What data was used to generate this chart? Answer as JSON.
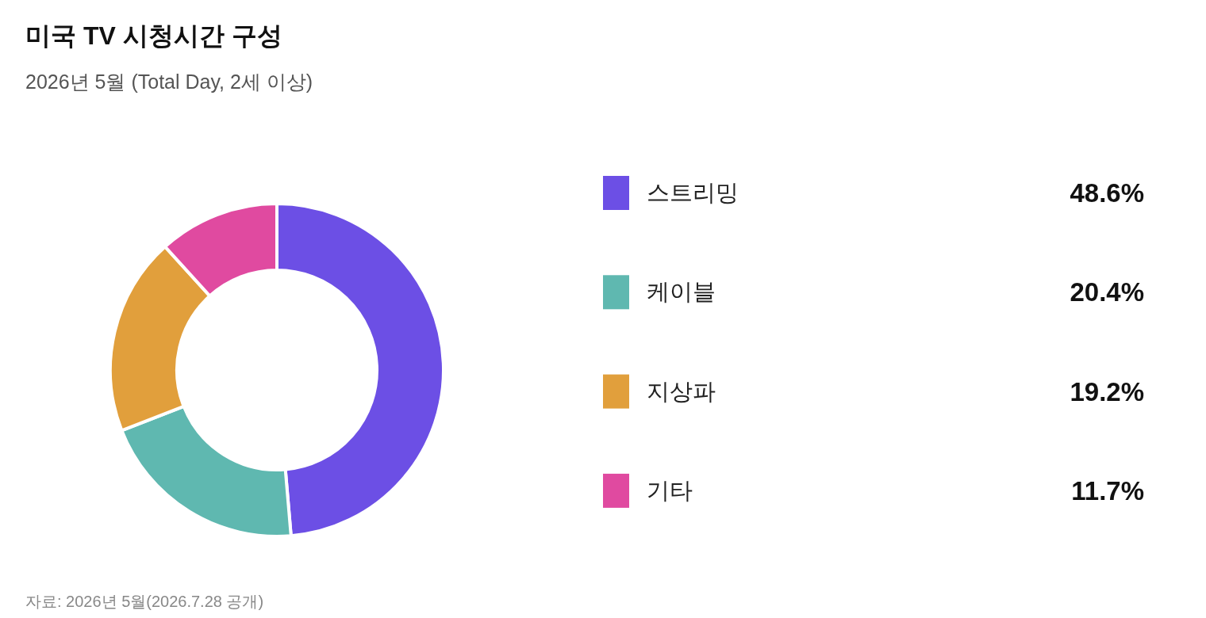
{
  "chart_data": {
    "type": "donut",
    "title": "미국 TV 시청시간 구성",
    "subtitle": "2026년 5월 (Total Day, 2세 이상)",
    "categories": [
      "스트리밍",
      "케이블",
      "지상파",
      "기타"
    ],
    "values": [
      48.6,
      20.4,
      19.2,
      11.7
    ],
    "colors": [
      "#6c4fe5",
      "#5fb8b0",
      "#e19f3c",
      "#e04aa0"
    ],
    "value_labels": [
      "48.6%",
      "20.4%",
      "19.2%",
      "11.7%"
    ],
    "legend": "right",
    "annotations": [
      "자료: 2026년 5월(2026.7.28 공개)"
    ]
  }
}
